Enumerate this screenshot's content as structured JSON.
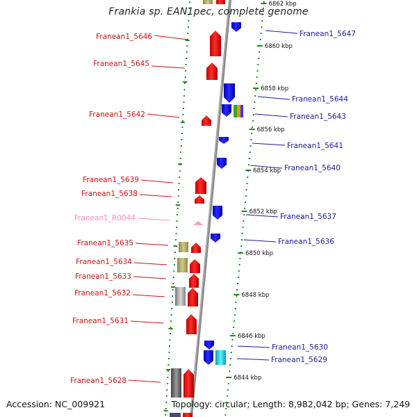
{
  "title": "Frankia sp. EAN1pec, complete genome",
  "footer": {
    "accession": "Accession: NC_009921",
    "summary": "Topology: circular; Length: 8,982,042 bp; Genes: 7,249"
  },
  "colors": {
    "backbone": "#8a8a8a",
    "tick": "#1a8a1a",
    "forward_gene": "#ee1111",
    "reverse_gene": "#2222ee",
    "rna_gene": "#ff99cc",
    "left_label": "#cc1111",
    "right_label": "#1a1a99",
    "rna_label": "#ff88bb"
  },
  "scale": {
    "tick_labels": [
      "6862 kbp",
      "6860 kbp",
      "6858 kbp",
      "6856 kbp",
      "6854 kbp",
      "6852 kbp",
      "6850 kbp",
      "6848 kbp",
      "6846 kbp",
      "6844 kbp"
    ]
  },
  "left_labels": [
    {
      "text": "Franean1_5646",
      "type": "cds"
    },
    {
      "text": "Franean1_5645",
      "type": "cds"
    },
    {
      "text": "Franean1_5642",
      "type": "cds"
    },
    {
      "text": "Franean1_5639",
      "type": "cds"
    },
    {
      "text": "Franean1_5638",
      "type": "cds"
    },
    {
      "text": "Franean1_R0044",
      "type": "rna"
    },
    {
      "text": "Franean1_5635",
      "type": "cds"
    },
    {
      "text": "Franean1_5634",
      "type": "cds"
    },
    {
      "text": "Franean1_5633",
      "type": "cds"
    },
    {
      "text": "Franean1_5632",
      "type": "cds"
    },
    {
      "text": "Franean1_5631",
      "type": "cds"
    },
    {
      "text": "Franean1_5628",
      "type": "cds"
    }
  ],
  "right_labels": [
    {
      "text": "Franean1_5647"
    },
    {
      "text": "Franean1_5644"
    },
    {
      "text": "Franean1_5643"
    },
    {
      "text": "Franean1_5641"
    },
    {
      "text": "Franean1_5640"
    },
    {
      "text": "Franean1_5637"
    },
    {
      "text": "Franean1_5636"
    },
    {
      "text": "Franean1_5630"
    },
    {
      "text": "Franean1_5629"
    }
  ]
}
